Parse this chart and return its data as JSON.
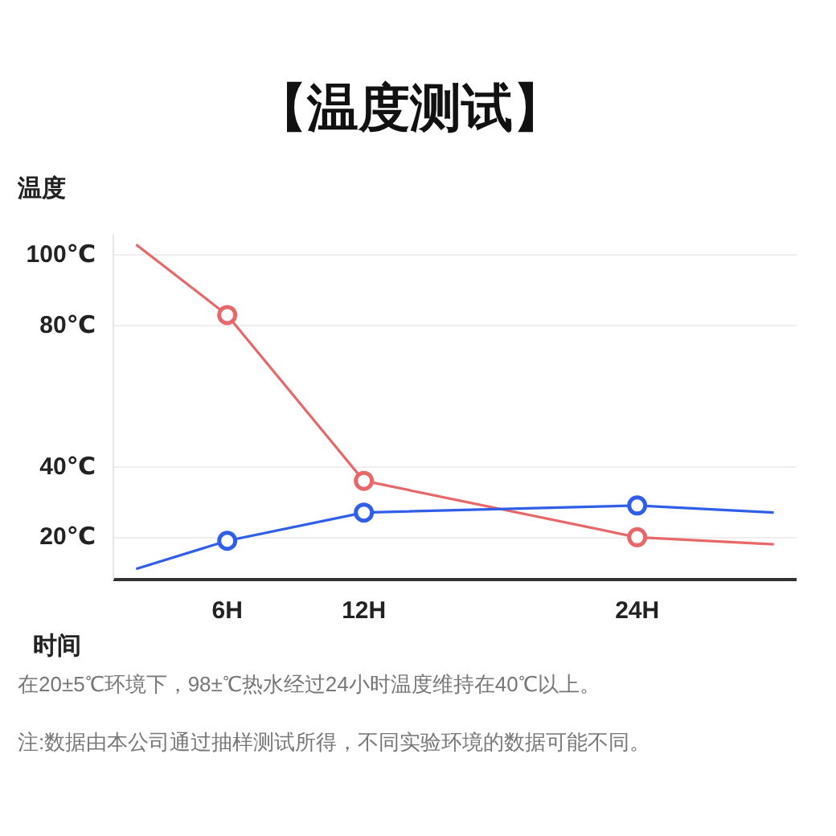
{
  "chart_data": {
    "type": "line",
    "title": "【温度测试】",
    "xlabel": "时间",
    "ylabel": "温度",
    "xlim": [
      1,
      31
    ],
    "xticks": [
      {
        "value": 6,
        "label": "6H"
      },
      {
        "value": 12,
        "label": "12H"
      },
      {
        "value": 24,
        "label": "24H"
      }
    ],
    "ylim": [
      8,
      106
    ],
    "yticks": [
      {
        "value": 20,
        "label": "20℃"
      },
      {
        "value": 40,
        "label": "40℃"
      },
      {
        "value": 80,
        "label": "80℃"
      },
      {
        "value": 100,
        "label": "100℃"
      }
    ],
    "grid": "y",
    "series": [
      {
        "marker": "none",
        "color": "#e8686a",
        "x": [
          2,
          6,
          12,
          24,
          30
        ],
        "values": [
          103,
          83,
          36,
          20,
          18
        ]
      },
      {
        "marker": "none",
        "color": "#2f5fe8",
        "x": [
          2,
          6,
          12,
          24,
          30
        ],
        "values": [
          11,
          19,
          27,
          29,
          27
        ]
      },
      {
        "type": "scatter",
        "marker": "circle",
        "color": "#e8686a",
        "x": [
          6,
          12,
          24
        ],
        "values": [
          83,
          36,
          20
        ]
      },
      {
        "type": "scatter",
        "marker": "circle",
        "color": "#2f5fe8",
        "x": [
          6,
          12,
          24
        ],
        "values": [
          19,
          27,
          29
        ]
      }
    ],
    "annotations": [
      "在20±5℃环境下，98±℃热水经过24小时温度维持在40℃以上。",
      "注:数据由本公司通过抽样测试所得，不同实验环境的数据可能不同。"
    ]
  }
}
